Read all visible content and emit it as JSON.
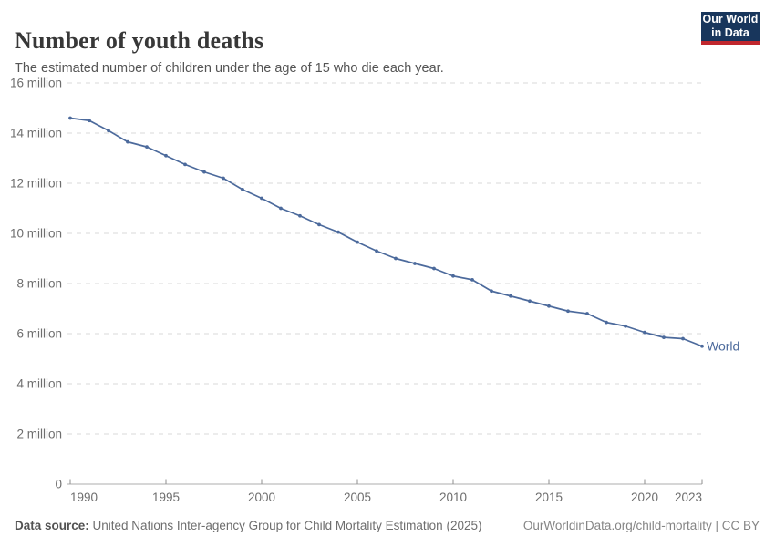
{
  "header": {
    "title": "Number of youth deaths",
    "subtitle": "The estimated number of children under the age of 15 who die each year.",
    "logo": {
      "line1": "Our World",
      "line2": "in Data",
      "bg_color": "#18365c",
      "accent_color": "#c0272d"
    }
  },
  "chart_data": {
    "type": "line",
    "title": "Number of youth deaths",
    "ylabel": "",
    "xlabel": "",
    "unit": "million deaths per year",
    "ylim": [
      0,
      16
    ],
    "xlim": [
      1990,
      2023
    ],
    "grid": "dashed horizontal",
    "legend_position": "end-of-line label",
    "y_ticks": [
      0,
      2,
      4,
      6,
      8,
      10,
      12,
      14,
      16
    ],
    "y_tick_suffix": " million",
    "x_ticks": [
      1990,
      1995,
      2000,
      2005,
      2010,
      2015,
      2020,
      2023
    ],
    "x": [
      1990,
      1991,
      1992,
      1993,
      1994,
      1995,
      1996,
      1997,
      1998,
      1999,
      2000,
      2001,
      2002,
      2003,
      2004,
      2005,
      2006,
      2007,
      2008,
      2009,
      2010,
      2011,
      2012,
      2013,
      2014,
      2015,
      2016,
      2017,
      2018,
      2019,
      2020,
      2021,
      2022,
      2023
    ],
    "series": [
      {
        "name": "World",
        "color": "#4C6A9C",
        "values": [
          14.6,
          14.5,
          14.1,
          13.65,
          13.45,
          13.1,
          12.75,
          12.45,
          12.2,
          11.75,
          11.4,
          11.0,
          10.7,
          10.35,
          10.05,
          9.65,
          9.3,
          9.0,
          8.8,
          8.6,
          8.3,
          8.15,
          7.7,
          7.5,
          7.3,
          7.1,
          6.9,
          6.8,
          6.45,
          6.3,
          6.05,
          5.85,
          5.8,
          5.5
        ]
      }
    ],
    "colors": {
      "gridline": "#d9d9d9",
      "axis_line": "#adadad",
      "tick_mark": "#8f8f8f",
      "tick_label": "#6e6e6e"
    }
  },
  "footer": {
    "source_label": "Data source:",
    "source_text": " United Nations Inter-agency Group for Child Mortality Estimation (2025)",
    "right_text": "OurWorldinData.org/child-mortality | CC BY"
  }
}
